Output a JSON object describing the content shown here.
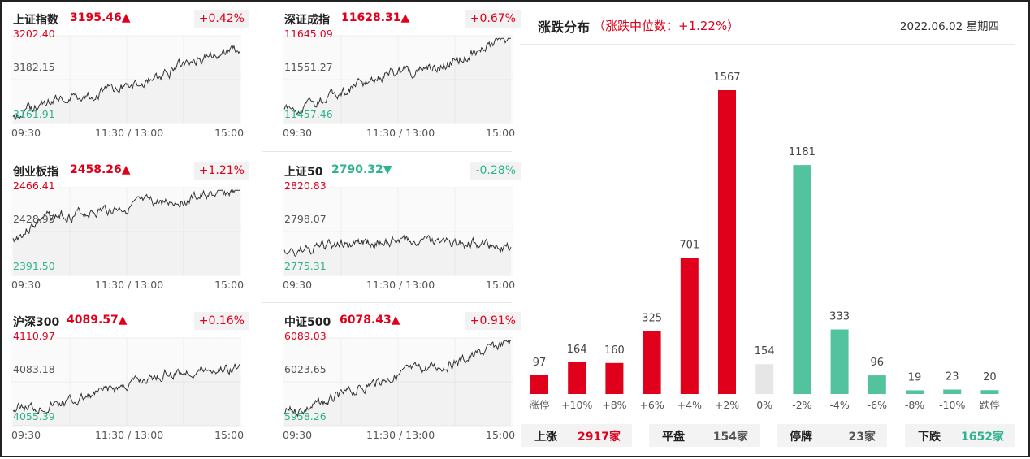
{
  "indices": [
    {
      "name": "上证指数",
      "value": "3195.46▲",
      "change": "+0.42%",
      "dir": "up",
      "tick_top": "3202.40",
      "tick_mid": "3182.15",
      "tick_bot": "3161.91",
      "seed": 1
    },
    {
      "name": "深证成指",
      "value": "11628.31▲",
      "change": "+0.67%",
      "dir": "up",
      "tick_top": "11645.09",
      "tick_mid": "11551.27",
      "tick_bot": "11457.46",
      "seed": 2
    },
    {
      "name": "创业板指",
      "value": "2458.26▲",
      "change": "+1.21%",
      "dir": "up",
      "tick_top": "2466.41",
      "tick_mid": "2428.95",
      "tick_bot": "2391.50",
      "seed": 3
    },
    {
      "name": "上证50",
      "value": "2790.32▼",
      "change": "-0.28%",
      "dir": "down",
      "tick_top": "2820.83",
      "tick_mid": "2798.07",
      "tick_bot": "2775.31",
      "seed": 4
    },
    {
      "name": "沪深300",
      "value": "4089.57▲",
      "change": "+0.16%",
      "dir": "up",
      "tick_top": "4110.97",
      "tick_mid": "4083.18",
      "tick_bot": "4055.39",
      "seed": 5
    },
    {
      "name": "中证500",
      "value": "6078.43▲",
      "change": "+0.91%",
      "dir": "up",
      "tick_top": "6089.03",
      "tick_mid": "6023.65",
      "tick_bot": "5958.26",
      "seed": 6
    }
  ],
  "time_labels": {
    "start": "09:30",
    "mid": "11:30 / 13:00",
    "end": "15:00"
  },
  "distribution": {
    "title": "涨跌分布",
    "subtitle": "（涨跌中位数：+1.22%）",
    "date": "2022.06.02 星期四"
  },
  "chart_data": {
    "type": "bar",
    "title": "涨跌分布",
    "categories": [
      "涨停",
      "+10%",
      "+8%",
      "+6%",
      "+4%",
      "+2%",
      "0%",
      "-2%",
      "-4%",
      "-6%",
      "-8%",
      "-10%",
      "跌停"
    ],
    "values": [
      97,
      164,
      160,
      325,
      701,
      1567,
      154,
      1181,
      333,
      96,
      19,
      23,
      20
    ],
    "bar_colors": [
      "#e0001b",
      "#e0001b",
      "#e0001b",
      "#e0001b",
      "#e0001b",
      "#e0001b",
      "#e6e6e6",
      "#52c29f",
      "#52c29f",
      "#52c29f",
      "#52c29f",
      "#52c29f",
      "#52c29f"
    ],
    "ylim": [
      0,
      1567
    ],
    "grid": false
  },
  "summary": [
    {
      "label": "上涨",
      "value": "2917家",
      "dir": "up"
    },
    {
      "label": "平盘",
      "value": "154家",
      "dir": "neutral"
    },
    {
      "label": "停牌",
      "value": "23家",
      "dir": "neutral"
    },
    {
      "label": "下跌",
      "value": "1652家",
      "dir": "down"
    }
  ],
  "colors": {
    "up": "#e0001b",
    "down": "#2fb38f",
    "flat": "#e6e6e6"
  }
}
